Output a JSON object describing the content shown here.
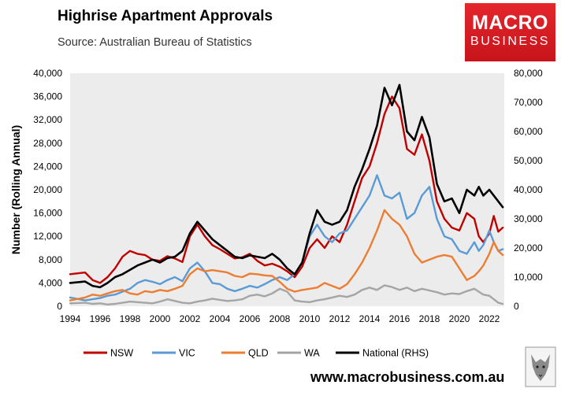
{
  "header": {
    "title": "Highrise Apartment Approvals",
    "subtitle": "Source: Australian Bureau of Statistics"
  },
  "logo": {
    "line1": "MACRO",
    "line2": "BUSINESS"
  },
  "footer": {
    "url": "www.macrobusiness.com.au"
  },
  "chart_data": {
    "type": "line",
    "title": "Highrise Apartment Approvals",
    "ylabel": "Number (Rolling Annual)",
    "xlim": [
      1994,
      2023
    ],
    "ylim": [
      0,
      40000
    ],
    "y2lim": [
      0,
      80000
    ],
    "x_ticks": [
      "1994",
      "1996",
      "1998",
      "2000",
      "2002",
      "2004",
      "2006",
      "2008",
      "2010",
      "2012",
      "2014",
      "2016",
      "2018",
      "2020",
      "2022"
    ],
    "y_ticks": [
      "0",
      "4,000",
      "8,000",
      "12,000",
      "16,000",
      "20,000",
      "24,000",
      "28,000",
      "32,000",
      "36,000",
      "40,000"
    ],
    "y2_ticks": [
      "0",
      "10,000",
      "20,000",
      "30,000",
      "40,000",
      "50,000",
      "60,000",
      "70,000",
      "80,000"
    ],
    "legend_position": "bottom",
    "series": [
      {
        "name": "NSW",
        "color": "#c00000",
        "axis": "left",
        "x": [
          1994,
          1995,
          1995.5,
          1996,
          1996.5,
          1997,
          1997.5,
          1998,
          1998.5,
          1999,
          1999.5,
          2000,
          2000.5,
          2001,
          2001.5,
          2002,
          2002.5,
          2003,
          2003.5,
          2004,
          2004.5,
          2005,
          2005.5,
          2006,
          2006.5,
          2007,
          2007.5,
          2008,
          2008.5,
          2009,
          2009.5,
          2010,
          2010.5,
          2011,
          2011.5,
          2012,
          2012.5,
          2013,
          2013.5,
          2014,
          2014.5,
          2015,
          2015.5,
          2016,
          2016.5,
          2017,
          2017.5,
          2018,
          2018.5,
          2019,
          2019.5,
          2020,
          2020.5,
          2021,
          2021.3,
          2021.6,
          2022,
          2022.3,
          2022.6,
          2022.9
        ],
        "values": [
          5500,
          5800,
          4500,
          4000,
          5000,
          6500,
          8500,
          9500,
          9000,
          8800,
          8000,
          7800,
          8600,
          8200,
          7600,
          12000,
          14000,
          12000,
          10500,
          9800,
          9000,
          8200,
          8400,
          9000,
          7800,
          7000,
          7300,
          6800,
          6000,
          5000,
          6800,
          10000,
          11500,
          10000,
          12000,
          11000,
          14000,
          18000,
          22000,
          24000,
          28000,
          33000,
          36000,
          34000,
          27000,
          26000,
          29500,
          25000,
          18000,
          15000,
          13500,
          13000,
          16000,
          15000,
          12000,
          11000,
          12500,
          15500,
          12800,
          13500
        ]
      },
      {
        "name": "VIC",
        "color": "#5b9bd5",
        "axis": "left",
        "x": [
          1994,
          1995,
          1995.5,
          1996,
          1996.5,
          1997,
          1997.5,
          1998,
          1998.5,
          1999,
          1999.5,
          2000,
          2000.5,
          2001,
          2001.5,
          2002,
          2002.5,
          2003,
          2003.5,
          2004,
          2004.5,
          2005,
          2005.5,
          2006,
          2006.5,
          2007,
          2007.5,
          2008,
          2008.5,
          2009,
          2009.5,
          2010,
          2010.5,
          2011,
          2011.5,
          2012,
          2012.5,
          2013,
          2013.5,
          2014,
          2014.5,
          2015,
          2015.5,
          2016,
          2016.5,
          2017,
          2017.5,
          2018,
          2018.5,
          2019,
          2019.5,
          2020,
          2020.5,
          2021,
          2021.3,
          2021.6,
          2022,
          2022.3,
          2022.6,
          2022.9
        ],
        "values": [
          1500,
          1000,
          1200,
          1400,
          1800,
          2000,
          2500,
          3000,
          4000,
          4500,
          4200,
          3800,
          4500,
          5000,
          4300,
          6500,
          7500,
          6000,
          4000,
          3800,
          3000,
          2600,
          3000,
          3500,
          3200,
          3800,
          4500,
          5000,
          4500,
          5500,
          7500,
          12000,
          14000,
          12000,
          11000,
          12500,
          13000,
          15000,
          17000,
          19000,
          22500,
          19000,
          18500,
          19500,
          15000,
          16000,
          19000,
          20500,
          15000,
          12000,
          11500,
          9500,
          9000,
          11000,
          9500,
          10500,
          13000,
          11000,
          9500,
          9800
        ]
      },
      {
        "name": "QLD",
        "color": "#ed7d31",
        "axis": "left",
        "x": [
          1994,
          1995,
          1995.5,
          1996,
          1996.5,
          1997,
          1997.5,
          1998,
          1998.5,
          1999,
          1999.5,
          2000,
          2000.5,
          2001,
          2001.5,
          2002,
          2002.5,
          2003,
          2003.5,
          2004,
          2004.5,
          2005,
          2005.5,
          2006,
          2006.5,
          2007,
          2007.5,
          2008,
          2008.5,
          2009,
          2009.5,
          2010,
          2010.5,
          2011,
          2011.5,
          2012,
          2012.5,
          2013,
          2013.5,
          2014,
          2014.5,
          2015,
          2015.5,
          2016,
          2016.5,
          2017,
          2017.5,
          2018,
          2018.5,
          2019,
          2019.5,
          2020,
          2020.5,
          2021,
          2021.3,
          2021.6,
          2022,
          2022.3,
          2022.6,
          2022.9
        ],
        "values": [
          1000,
          1500,
          2000,
          1800,
          2200,
          2600,
          2800,
          2200,
          2000,
          2600,
          2400,
          2800,
          2600,
          3000,
          3500,
          5500,
          6500,
          6000,
          6200,
          6000,
          5800,
          5200,
          5000,
          5600,
          5500,
          5300,
          5200,
          4200,
          3000,
          2500,
          2800,
          3000,
          3200,
          4000,
          3500,
          3000,
          3800,
          5500,
          7500,
          10000,
          13000,
          16500,
          15000,
          14000,
          12000,
          9000,
          7500,
          8000,
          8500,
          8800,
          8500,
          6500,
          4500,
          5200,
          6000,
          7000,
          9000,
          11000,
          9500,
          8800
        ]
      },
      {
        "name": "WA",
        "color": "#a5a5a5",
        "axis": "left",
        "x": [
          1994,
          1995,
          1995.5,
          1996,
          1996.5,
          1997,
          1997.5,
          1998,
          1998.5,
          1999,
          1999.5,
          2000,
          2000.5,
          2001,
          2001.5,
          2002,
          2002.5,
          2003,
          2003.5,
          2004,
          2004.5,
          2005,
          2005.5,
          2006,
          2006.5,
          2007,
          2007.5,
          2008,
          2008.5,
          2009,
          2009.5,
          2010,
          2010.5,
          2011,
          2011.5,
          2012,
          2012.5,
          2013,
          2013.5,
          2014,
          2014.5,
          2015,
          2015.5,
          2016,
          2016.5,
          2017,
          2017.5,
          2018,
          2018.5,
          2019,
          2019.5,
          2020,
          2020.5,
          2021,
          2021.3,
          2021.6,
          2022,
          2022.3,
          2022.6,
          2022.9
        ],
        "values": [
          500,
          600,
          400,
          500,
          300,
          400,
          600,
          800,
          700,
          600,
          500,
          800,
          1200,
          900,
          600,
          500,
          800,
          1000,
          1300,
          1100,
          900,
          1000,
          1200,
          1800,
          2000,
          1700,
          2200,
          3000,
          2500,
          1000,
          800,
          700,
          1000,
          1200,
          1500,
          1800,
          1600,
          2000,
          2800,
          3200,
          2800,
          3600,
          3300,
          2800,
          3200,
          2600,
          3000,
          2700,
          2400,
          2000,
          2200,
          2100,
          2600,
          3000,
          2500,
          2000,
          1800,
          1200,
          600,
          400
        ]
      },
      {
        "name": "National (RHS)",
        "color": "#000000",
        "axis": "right",
        "x": [
          1994,
          1995,
          1995.5,
          1996,
          1996.5,
          1997,
          1997.5,
          1998,
          1998.5,
          1999,
          1999.5,
          2000,
          2000.5,
          2001,
          2001.5,
          2002,
          2002.5,
          2003,
          2003.5,
          2004,
          2004.5,
          2005,
          2005.5,
          2006,
          2006.5,
          2007,
          2007.5,
          2008,
          2008.5,
          2009,
          2009.5,
          2010,
          2010.5,
          2011,
          2011.5,
          2012,
          2012.5,
          2013,
          2013.5,
          2014,
          2014.5,
          2015,
          2015.5,
          2016,
          2016.5,
          2017,
          2017.5,
          2018,
          2018.5,
          2019,
          2019.5,
          2020,
          2020.5,
          2021,
          2021.3,
          2021.6,
          2022,
          2022.3,
          2022.6,
          2022.9
        ],
        "values": [
          8000,
          8500,
          7000,
          6500,
          8000,
          10000,
          11000,
          12500,
          14000,
          15000,
          16000,
          15000,
          16500,
          17000,
          19000,
          25000,
          29000,
          26000,
          23000,
          21000,
          19000,
          17000,
          16500,
          17500,
          17000,
          16500,
          18000,
          16000,
          13000,
          11000,
          15000,
          25000,
          33000,
          29000,
          28000,
          29000,
          33000,
          41000,
          47000,
          54000,
          62000,
          75000,
          69000,
          76000,
          60000,
          57000,
          65000,
          58000,
          42000,
          36000,
          37000,
          32000,
          40000,
          38000,
          41000,
          38000,
          40000,
          38000,
          36000,
          34000
        ]
      }
    ]
  }
}
